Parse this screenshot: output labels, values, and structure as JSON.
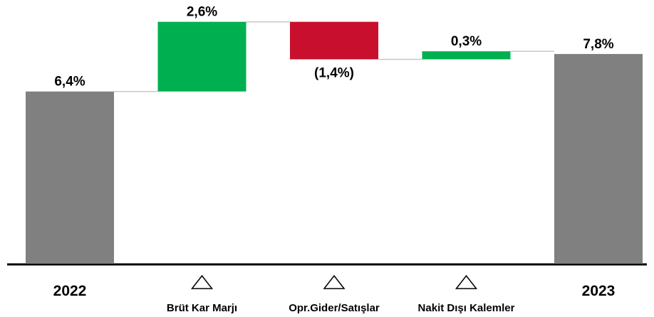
{
  "chart_data": {
    "type": "waterfall",
    "categories": [
      "2022",
      "Brüt Kar Marjı",
      "Opr.Gider/Satışlar",
      "Nakit Dışı Kalemler",
      "2023"
    ],
    "measure": [
      "total",
      "relative",
      "relative",
      "relative",
      "total"
    ],
    "values": [
      6.4,
      2.6,
      -1.4,
      0.3,
      7.8
    ],
    "value_labels": [
      "6,4%",
      "2,6%",
      "(1,4%)",
      "0,3%",
      "7,8%"
    ],
    "colors": [
      "#808080",
      "#00b050",
      "#c8102e",
      "#00b050",
      "#808080"
    ]
  }
}
